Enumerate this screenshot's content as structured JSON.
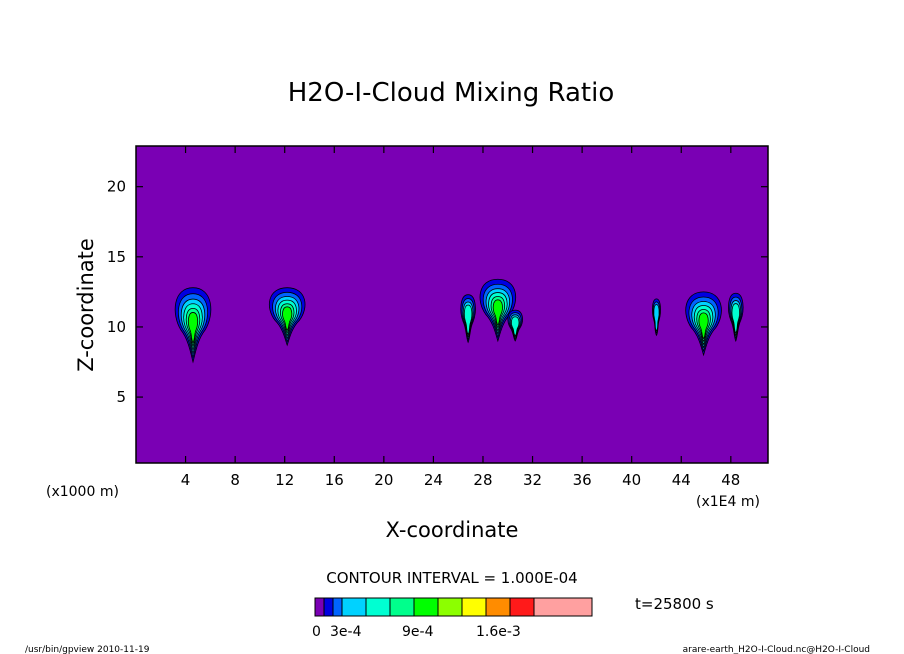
{
  "chart_data": {
    "type": "contour",
    "title": "H2O-I-Cloud Mixing Ratio",
    "xlabel": "X-coordinate",
    "ylabel": "Z-coordinate",
    "x_unit_left": "(x1000 m)",
    "x_unit_right": "(x1E4 m)",
    "xlim": [
      0,
      51
    ],
    "ylim": [
      0.3,
      22.9
    ],
    "x_ticks": [
      4,
      8,
      12,
      16,
      20,
      24,
      28,
      32,
      36,
      40,
      44,
      48
    ],
    "x_tick_labels": [
      "4",
      "8",
      "12",
      "16",
      "20",
      "24",
      "28",
      "32",
      "36",
      "40",
      "44",
      "48"
    ],
    "y_ticks": [
      5,
      10,
      15,
      20
    ],
    "y_tick_labels": [
      "5",
      "10",
      "15",
      "20"
    ],
    "background_color": "#7a00b4",
    "contour_interval_text": "CONTOUR INTERVAL = 1.000E-04",
    "time_text": "t=25800 s",
    "colorbar": {
      "colors": [
        "#7a00b4",
        "#0000e0",
        "#0064ff",
        "#00d2ff",
        "#00ffd2",
        "#00ff8c",
        "#00ff00",
        "#8cff00",
        "#ffff00",
        "#ff8c00",
        "#ff1a1a",
        "#ffa0a0"
      ],
      "labels": [
        "0",
        "3e-4",
        "9e-4",
        "1.6e-3"
      ]
    },
    "clouds": [
      {
        "x": 4.6,
        "z_bottom": 7.5,
        "z_top": 12.8,
        "peak": "6e-4"
      },
      {
        "x": 12.2,
        "z_bottom": 8.7,
        "z_top": 12.8,
        "peak": "6e-4"
      },
      {
        "x": 26.8,
        "z_bottom": 8.9,
        "z_top": 12.3,
        "peak": "4e-4"
      },
      {
        "x": 29.2,
        "z_bottom": 9.0,
        "z_top": 13.4,
        "peak": "6e-4"
      },
      {
        "x": 30.6,
        "z_bottom": 9.0,
        "z_top": 11.2,
        "peak": "4e-4"
      },
      {
        "x": 42.0,
        "z_bottom": 9.4,
        "z_top": 12.0,
        "peak": "3e-4"
      },
      {
        "x": 45.8,
        "z_bottom": 8.0,
        "z_top": 12.5,
        "peak": "6e-4"
      },
      {
        "x": 48.4,
        "z_bottom": 9.0,
        "z_top": 12.4,
        "peak": "4e-4"
      }
    ]
  },
  "footer": {
    "left": "/usr/bin/gpview  2010-11-19",
    "right": "arare-earth_H2O-I-Cloud.nc@H2O-I-Cloud"
  }
}
